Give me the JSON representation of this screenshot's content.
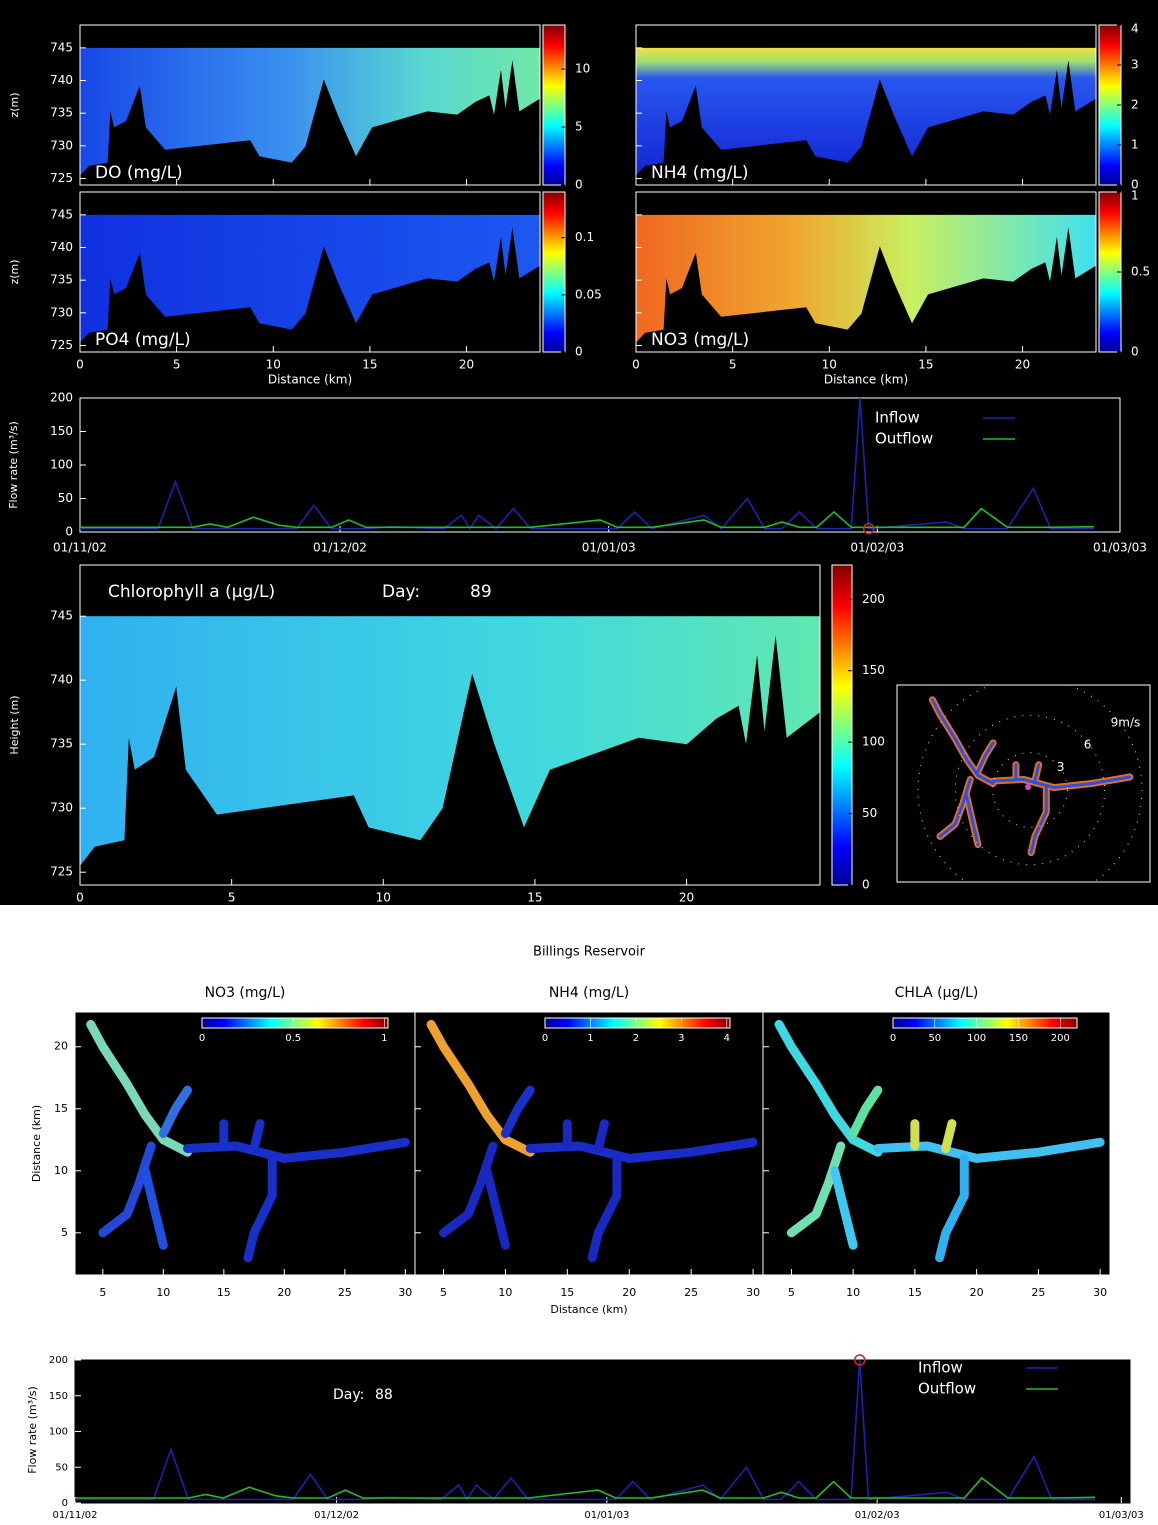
{
  "chart_data": [
    {
      "type": "heatmap",
      "title": "DO (mg/L)",
      "ylabel": "z(m)",
      "xlim": [
        0,
        23.8
      ],
      "xticks": [
        0,
        5,
        10,
        15,
        20
      ],
      "ylim": [
        724,
        748.5
      ],
      "yticks": [
        725,
        730,
        735,
        740,
        745
      ],
      "clim": [
        0,
        13.8
      ],
      "cticks": [
        0,
        5,
        10
      ]
    },
    {
      "type": "heatmap",
      "title": "NH4 (mg/L)",
      "xlim": [
        0,
        23.8
      ],
      "xticks": [
        0,
        5,
        10,
        15,
        20
      ],
      "ylim": [
        724,
        748.5
      ],
      "yticks": [
        725,
        730,
        735,
        740,
        745
      ],
      "clim": [
        0,
        4
      ],
      "cticks": [
        0,
        1,
        2,
        3,
        4
      ]
    },
    {
      "type": "heatmap",
      "title": "PO4 (mg/L)",
      "ylabel": "z(m)",
      "xlabel": "Distance (km)",
      "xlim": [
        0,
        23.8
      ],
      "xticks": [
        0,
        5,
        10,
        15,
        20
      ],
      "ylim": [
        724,
        748.5
      ],
      "yticks": [
        725,
        730,
        735,
        740,
        745
      ],
      "clim": [
        0,
        0.14
      ],
      "cticks": [
        0,
        0.05,
        0.1
      ]
    },
    {
      "type": "heatmap",
      "title": "NO3 (mg/L)",
      "xlabel": "Distance (km)",
      "xlim": [
        0,
        23.8
      ],
      "xticks": [
        0,
        5,
        10,
        15,
        20
      ],
      "ylim": [
        724,
        748.5
      ],
      "yticks": [
        725,
        730,
        735,
        740,
        745
      ],
      "clim": [
        0,
        1
      ],
      "cticks": [
        0,
        0.5,
        1
      ]
    },
    {
      "type": "line",
      "ylabel": "Flow rate (m³/s)",
      "x": [
        "2002-11-01",
        "2002-11-10",
        "2002-11-12",
        "2002-11-14",
        "2002-11-16",
        "2002-11-18",
        "2002-11-21",
        "2002-11-24",
        "2002-11-26",
        "2002-11-28",
        "2002-11-30",
        "2002-12-02",
        "2002-12-04",
        "2002-12-07",
        "2002-12-13",
        "2002-12-15",
        "2002-12-16",
        "2002-12-17",
        "2002-12-19",
        "2002-12-21",
        "2002-12-23",
        "2002-12-31",
        "2003-01-02",
        "2003-01-04",
        "2003-01-06",
        "2003-01-12",
        "2003-01-14",
        "2003-01-17",
        "2003-01-19",
        "2003-01-21",
        "2003-01-23",
        "2003-01-25",
        "2003-01-27",
        "2003-01-29",
        "2003-01-30",
        "2003-01-31",
        "2003-02-09",
        "2003-02-11",
        "2003-02-13",
        "2003-02-16",
        "2003-02-19",
        "2003-02-21",
        "2003-02-26"
      ],
      "series": [
        {
          "name": "Inflow",
          "color": "#2020b0",
          "values": [
            5,
            5,
            75,
            5,
            5,
            5,
            5,
            5,
            5,
            40,
            5,
            5,
            5,
            8,
            5,
            25,
            5,
            25,
            5,
            35,
            5,
            5,
            5,
            30,
            5,
            25,
            5,
            50,
            5,
            5,
            30,
            5,
            5,
            5,
            200,
            5,
            15,
            5,
            5,
            5,
            65,
            5,
            5
          ]
        },
        {
          "name": "Outflow",
          "color": "#20c020",
          "values": [
            7,
            7,
            7,
            7,
            12,
            7,
            22,
            10,
            7,
            7,
            7,
            18,
            7,
            7,
            7,
            7,
            7,
            7,
            7,
            7,
            7,
            18,
            7,
            7,
            7,
            18,
            7,
            7,
            7,
            15,
            7,
            7,
            30,
            7,
            7,
            7,
            7,
            7,
            35,
            7,
            7,
            7,
            8
          ]
        }
      ],
      "xlim": [
        "2002-11-01",
        "2003-03-01"
      ],
      "xticks": [
        {
          "value": "2002-11-01",
          "label": "01/11/02"
        },
        {
          "value": "2002-12-01",
          "label": "01/12/02"
        },
        {
          "value": "2003-01-01",
          "label": "01/01/03"
        },
        {
          "value": "2003-02-01",
          "label": "01/02/03"
        },
        {
          "value": "2003-03-01",
          "label": "01/03/03"
        }
      ],
      "ylim": [
        0,
        200
      ],
      "yticks": [
        0,
        50,
        100,
        150,
        200
      ],
      "marker": {
        "x": "2003-01-31",
        "y": 5
      }
    },
    {
      "type": "heatmap",
      "title": "Chlorophyll a (µg/L)",
      "day_label": "Day:",
      "day": 89,
      "ylabel": "Height (m)",
      "xlim": [
        0,
        24.4
      ],
      "xticks": [
        0,
        5,
        10,
        15,
        20
      ],
      "ylim": [
        724,
        749
      ],
      "yticks": [
        725,
        730,
        735,
        740,
        745
      ],
      "clim": [
        0,
        224
      ],
      "cticks": [
        0,
        50,
        100,
        150,
        200
      ]
    },
    {
      "type": "wind",
      "rings": [
        {
          "value": 3,
          "label": "3"
        },
        {
          "value": 6,
          "label": "6"
        },
        {
          "value": 9,
          "label": "9m/s"
        }
      ]
    },
    {
      "type": "map",
      "suptitle": "Billings Reservoir",
      "title": "NO3 (mg/L)",
      "ylabel": "Distance (km)",
      "xlim": [
        2.7,
        30.8
      ],
      "xticks": [
        5,
        10,
        15,
        20,
        25,
        30
      ],
      "ylim": [
        1.6,
        22.8
      ],
      "yticks": [
        5,
        10,
        15,
        20
      ],
      "clim": [
        0,
        1.02
      ],
      "cticks": [
        0,
        0.5,
        1
      ]
    },
    {
      "type": "map",
      "title": "NH4 (mg/L)",
      "xlabel": "Distance (km)",
      "xlim": [
        2.7,
        30.8
      ],
      "xticks": [
        5,
        10,
        15,
        20,
        25,
        30
      ],
      "ylim": [
        1.6,
        22.8
      ],
      "yticks": [
        5,
        10,
        15,
        20
      ],
      "clim": [
        0,
        4.07
      ],
      "cticks": [
        0,
        1,
        2,
        3,
        4
      ]
    },
    {
      "type": "map",
      "title": "CHLA (µg/L)",
      "xlim": [
        2.7,
        30.8
      ],
      "xticks": [
        5,
        10,
        15,
        20,
        25,
        30
      ],
      "ylim": [
        1.6,
        22.8
      ],
      "yticks": [
        5,
        10,
        15,
        20
      ],
      "clim": [
        0,
        220
      ],
      "cticks": [
        0,
        50,
        100,
        150,
        200
      ]
    },
    {
      "type": "line",
      "ylabel": "Flow rate (m³/s)",
      "day_label": "Day:",
      "day": 88,
      "x": [
        "2002-11-01",
        "2002-11-10",
        "2002-11-12",
        "2002-11-14",
        "2002-11-16",
        "2002-11-18",
        "2002-11-21",
        "2002-11-24",
        "2002-11-26",
        "2002-11-28",
        "2002-11-30",
        "2002-12-02",
        "2002-12-04",
        "2002-12-07",
        "2002-12-13",
        "2002-12-15",
        "2002-12-16",
        "2002-12-17",
        "2002-12-19",
        "2002-12-21",
        "2002-12-23",
        "2002-12-31",
        "2003-01-02",
        "2003-01-04",
        "2003-01-06",
        "2003-01-12",
        "2003-01-14",
        "2003-01-17",
        "2003-01-19",
        "2003-01-21",
        "2003-01-23",
        "2003-01-25",
        "2003-01-27",
        "2003-01-29",
        "2003-01-30",
        "2003-01-31",
        "2003-02-09",
        "2003-02-11",
        "2003-02-13",
        "2003-02-16",
        "2003-02-19",
        "2003-02-21",
        "2003-02-26"
      ],
      "series": [
        {
          "name": "Inflow",
          "color": "#2020b0",
          "values": [
            5,
            5,
            75,
            5,
            5,
            5,
            5,
            5,
            5,
            40,
            5,
            5,
            5,
            8,
            5,
            25,
            5,
            25,
            5,
            35,
            5,
            5,
            5,
            30,
            5,
            25,
            5,
            50,
            5,
            5,
            30,
            5,
            5,
            5,
            200,
            5,
            15,
            5,
            5,
            5,
            65,
            5,
            5
          ]
        },
        {
          "name": "Outflow",
          "color": "#20c020",
          "values": [
            7,
            7,
            7,
            7,
            12,
            7,
            22,
            10,
            7,
            7,
            7,
            18,
            7,
            7,
            7,
            7,
            7,
            7,
            7,
            7,
            7,
            18,
            7,
            7,
            7,
            18,
            7,
            7,
            7,
            15,
            7,
            7,
            30,
            7,
            7,
            7,
            7,
            7,
            35,
            7,
            7,
            7,
            8
          ]
        }
      ],
      "xlim": [
        "2002-11-01",
        "2003-03-02"
      ],
      "xticks": [
        {
          "value": "2002-11-01",
          "label": "01/11/02"
        },
        {
          "value": "2002-12-01",
          "label": "01/12/02"
        },
        {
          "value": "2003-01-01",
          "label": "01/01/03"
        },
        {
          "value": "2003-02-01",
          "label": "01/02/03"
        },
        {
          "value": "2003-03-01",
          "label": "01/03/03"
        }
      ],
      "ylim": [
        0,
        200
      ],
      "yticks": [
        0,
        50,
        100,
        150,
        200
      ],
      "marker": {
        "x": "2003-01-30",
        "y": 200
      }
    }
  ]
}
